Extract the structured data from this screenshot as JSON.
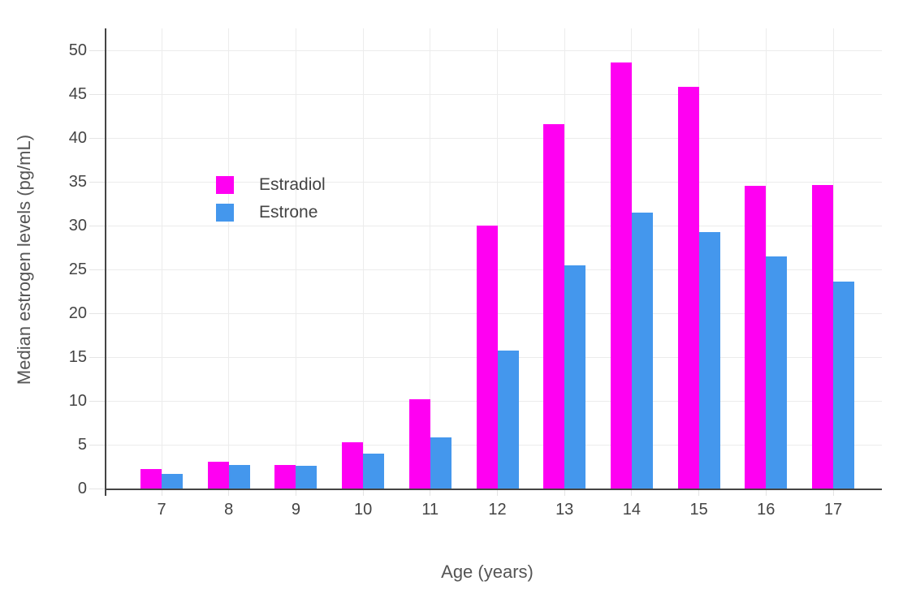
{
  "chart_data": {
    "type": "bar",
    "title": "",
    "xlabel": "Age (years)",
    "ylabel": "Median estrogen levels (pg/mL)",
    "categories": [
      "7",
      "8",
      "9",
      "10",
      "11",
      "12",
      "13",
      "14",
      "15",
      "16",
      "17"
    ],
    "series": [
      {
        "name": "Estradiol",
        "color": "#FF00F2",
        "values": [
          2.2,
          3.1,
          2.7,
          5.3,
          10.2,
          30.0,
          41.6,
          48.6,
          45.8,
          34.5,
          34.6
        ]
      },
      {
        "name": "Estrone",
        "color": "#4497ED",
        "values": [
          1.7,
          2.7,
          2.6,
          4.0,
          5.8,
          15.7,
          25.5,
          31.5,
          29.3,
          26.5,
          23.6
        ]
      }
    ],
    "ylim": [
      0,
      52.5
    ],
    "yticks": [
      0,
      5,
      10,
      15,
      20,
      25,
      30,
      35,
      40,
      45,
      50
    ],
    "grid": true,
    "legend_position": "inside-upper-left",
    "bar_mode": "grouped"
  }
}
